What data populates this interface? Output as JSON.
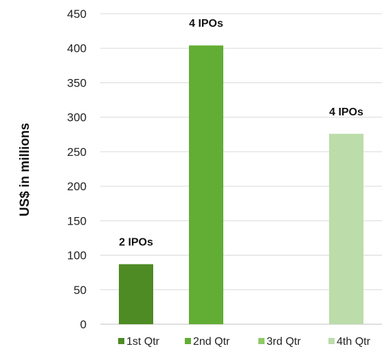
{
  "chart_data": {
    "type": "bar",
    "categories": [
      "1st Qtr",
      "2nd Qtr",
      "3rd Qtr",
      "4th Qtr"
    ],
    "values": [
      87,
      404,
      0,
      276
    ],
    "data_labels": [
      "2 IPOs",
      "4 IPOs",
      "",
      "4 IPOs"
    ],
    "colors": [
      "#4e8b24",
      "#62ad33",
      "#8fca66",
      "#bcdcaa"
    ],
    "ylabel": "US$ in millions",
    "ylim": [
      0,
      450
    ],
    "yticks": [
      "0",
      "50",
      "100",
      "150",
      "200",
      "250",
      "300",
      "350",
      "400",
      "450"
    ],
    "grid": true,
    "legend_position": "bottom"
  }
}
